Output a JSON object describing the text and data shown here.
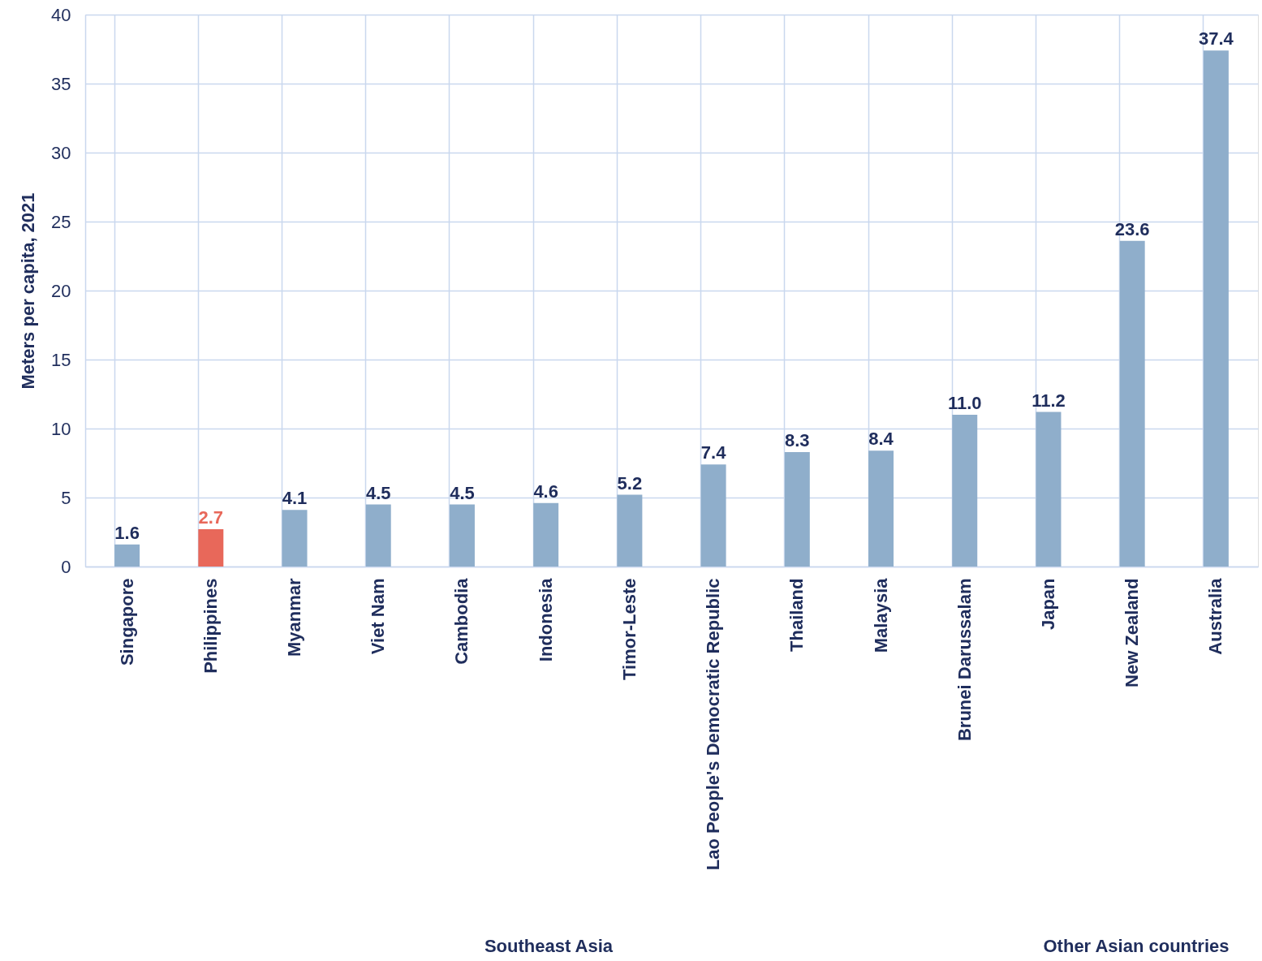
{
  "chart_data": {
    "type": "bar",
    "ylabel": "Meters per capita, 2021",
    "categories": [
      "Singapore",
      "Philippines",
      "Myanmar",
      "Viet Nam",
      "Cambodia",
      "Indonesia",
      "Timor-Leste",
      "Lao People's Democratic Republic",
      "Thailand",
      "Malaysia",
      "Brunei Darussalam",
      "Japan",
      "New Zealand",
      "Australia"
    ],
    "values": [
      1.6,
      2.7,
      4.1,
      4.5,
      4.5,
      4.6,
      5.2,
      7.4,
      8.3,
      8.4,
      11.0,
      11.2,
      23.6,
      37.4
    ],
    "value_labels": [
      "1.6",
      "2.7",
      "4.1",
      "4.5",
      "4.5",
      "4.6",
      "5.2",
      "7.4",
      "8.3",
      "8.4",
      "11.0",
      "11.2",
      "23.6",
      "37.4"
    ],
    "color": "#8faecb",
    "colors": [
      "#8faecb",
      "#e8685a",
      "#8faecb",
      "#8faecb",
      "#8faecb",
      "#8faecb",
      "#8faecb",
      "#8faecb",
      "#8faecb",
      "#8faecb",
      "#8faecb",
      "#8faecb",
      "#8faecb",
      "#8faecb"
    ],
    "ylim": [
      0,
      40
    ],
    "yticks": [
      0,
      5,
      10,
      15,
      20,
      25,
      30,
      35,
      40
    ],
    "grid": true,
    "annotations": [
      "Southeast Asia",
      "Other Asian countries"
    ]
  }
}
